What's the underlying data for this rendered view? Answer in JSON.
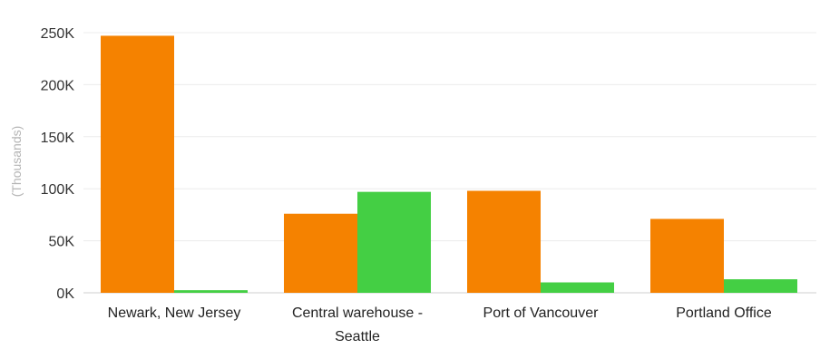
{
  "chart_data": {
    "type": "bar",
    "ylabel": "(Thousands)",
    "ylim": [
      0,
      250000
    ],
    "yticks": [
      0,
      50000,
      100000,
      150000,
      200000,
      250000
    ],
    "ytick_labels": [
      "0K",
      "50K",
      "100K",
      "150K",
      "200K",
      "250K"
    ],
    "grid": true,
    "categories": [
      [
        "Newark, New Jersey"
      ],
      [
        "Central warehouse -",
        "Seattle"
      ],
      [
        "Port of Vancouver"
      ],
      [
        "Portland Office"
      ]
    ],
    "series": [
      {
        "color": "#f58200",
        "values": [
          247000,
          76000,
          98000,
          71000
        ]
      },
      {
        "color": "#44cf44",
        "values": [
          2500,
          97000,
          10000,
          13000
        ]
      }
    ]
  }
}
